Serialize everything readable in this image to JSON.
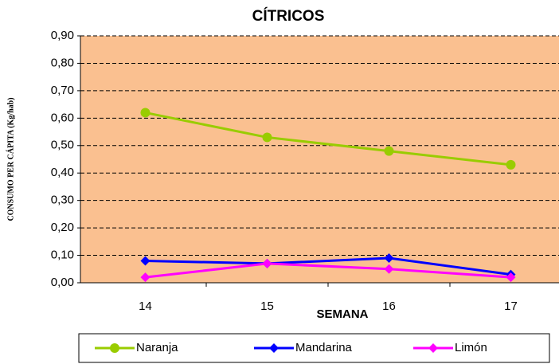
{
  "chart_data": {
    "type": "line",
    "title": "CÍTRICOS",
    "x_label": "SEMANA",
    "y_label": "CONSUMO PER CÁPITA  (Kg/hab)",
    "categories": [
      "14",
      "15",
      "16",
      "17"
    ],
    "series": [
      {
        "name": "Naranja",
        "color": "#99cc00",
        "marker": "circle",
        "values": [
          0.62,
          0.53,
          0.48,
          0.43
        ]
      },
      {
        "name": "Mandarina",
        "color": "#0000ff",
        "marker": "diamond",
        "values": [
          0.08,
          0.07,
          0.09,
          0.03
        ]
      },
      {
        "name": "Limón",
        "color": "#ff00ff",
        "marker": "diamond",
        "values": [
          0.02,
          0.07,
          0.05,
          0.02
        ]
      }
    ],
    "ylim": [
      0,
      0.9
    ],
    "yticks": [
      {
        "value": 0,
        "label": "0,00"
      },
      {
        "value": 0.1,
        "label": "0,10"
      },
      {
        "value": 0.2,
        "label": "0,20"
      },
      {
        "value": 0.3,
        "label": "0,30"
      },
      {
        "value": 0.4,
        "label": "0,40"
      },
      {
        "value": 0.5,
        "label": "0,50"
      },
      {
        "value": 0.6,
        "label": "0,60"
      },
      {
        "value": 0.7,
        "label": "0,70"
      },
      {
        "value": 0.8,
        "label": "0,80"
      },
      {
        "value": 0.9,
        "label": "0,90"
      }
    ],
    "grid": true,
    "background": "#fac090",
    "legend": "bottom"
  }
}
